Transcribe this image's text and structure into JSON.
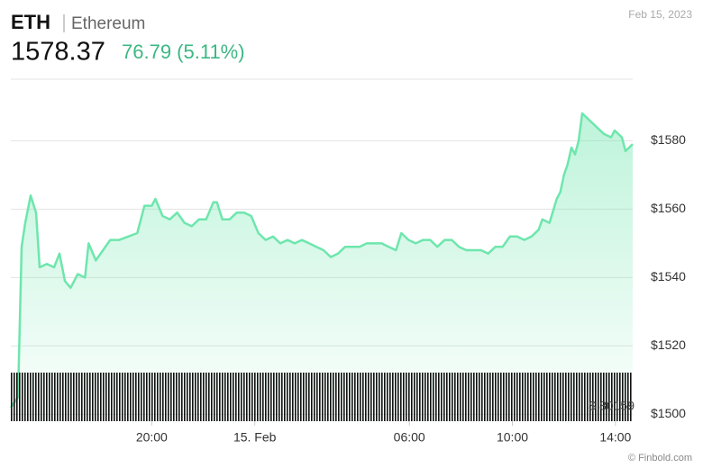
{
  "chart_data": {
    "type": "area",
    "symbol": "ETH",
    "name": "Ethereum",
    "price": "1578.37",
    "change": "76.79 (5.11%)",
    "date": "Feb 15, 2023",
    "volume_label": "$ 80159",
    "credit": "© Finbold.com",
    "color": "#6ee6ad",
    "change_color": "#3cb883",
    "grid": true,
    "x": [
      14.53,
      14.81,
      14.95,
      15.09,
      15.3,
      15.51,
      15.65,
      15.93,
      16.21,
      16.42,
      16.63,
      16.85,
      17.13,
      17.41,
      17.55,
      17.83,
      18.11,
      18.39,
      18.74,
      19.09,
      19.44,
      19.72,
      20.0,
      20.14,
      20.42,
      20.7,
      20.99,
      21.27,
      21.55,
      21.83,
      22.11,
      22.39,
      22.53,
      22.74,
      23.02,
      23.3,
      23.58,
      23.86,
      24.14,
      24.42,
      24.71,
      24.99,
      25.27,
      25.55,
      25.83,
      26.11,
      26.39,
      26.67,
      26.95,
      27.23,
      27.51,
      27.79,
      28.07,
      28.35,
      28.64,
      28.92,
      29.2,
      29.48,
      29.69,
      29.97,
      30.25,
      30.53,
      30.81,
      31.09,
      31.37,
      31.65,
      31.93,
      32.21,
      32.49,
      32.78,
      33.06,
      33.34,
      33.62,
      33.9,
      34.18,
      34.46,
      34.74,
      35.02,
      35.16,
      35.44,
      35.72,
      35.86,
      36.0,
      36.14,
      36.29,
      36.43,
      36.57,
      36.71,
      36.99,
      37.27,
      37.55,
      37.83,
      37.97,
      38.25,
      38.39,
      38.67
    ],
    "values": [
      1502,
      1505,
      1549,
      1556,
      1564,
      1559,
      1543,
      1544,
      1543,
      1547,
      1539,
      1537,
      1541,
      1540,
      1550,
      1545,
      1548,
      1551,
      1551,
      1552,
      1553,
      1561,
      1561,
      1563,
      1558,
      1557,
      1559,
      1556,
      1555,
      1557,
      1557,
      1562,
      1562,
      1557,
      1557,
      1559,
      1559,
      1558,
      1553,
      1551,
      1552,
      1550,
      1551,
      1550,
      1551,
      1550,
      1549,
      1548,
      1546,
      1547,
      1549,
      1549,
      1549,
      1550,
      1550,
      1550,
      1549,
      1548,
      1553,
      1551,
      1550,
      1551,
      1551,
      1549,
      1551,
      1551,
      1549,
      1548,
      1548,
      1548,
      1547,
      1549,
      1549,
      1552,
      1552,
      1551,
      1552,
      1554,
      1557,
      1556,
      1563,
      1565,
      1570,
      1573,
      1578,
      1576,
      1580,
      1588,
      1586,
      1584,
      1582,
      1581,
      1583,
      1581,
      1577,
      1579
    ],
    "xlim": [
      14.53,
      38.67
    ],
    "xticks": [
      {
        "value": 20,
        "label": "20:00"
      },
      {
        "value": 24,
        "label": "15. Feb"
      },
      {
        "value": 30,
        "label": "06:00"
      },
      {
        "value": 34,
        "label": "10:00"
      },
      {
        "value": 38,
        "label": "14:00"
      }
    ],
    "ylim": [
      1498,
      1598
    ],
    "yticks": [
      {
        "value": 1500,
        "label": "$1500"
      },
      {
        "value": 1520,
        "label": "$1520"
      },
      {
        "value": 1540,
        "label": "$1540"
      },
      {
        "value": 1560,
        "label": "$1560"
      },
      {
        "value": 1580,
        "label": "$1580"
      }
    ]
  }
}
